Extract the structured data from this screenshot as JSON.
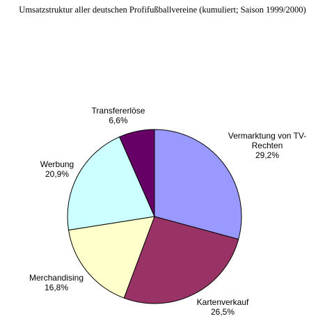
{
  "chart_data": {
    "type": "pie",
    "title": "Umsatzstruktur aller deutschen Profifußballvereine (kumuliert; Saison 1999/2000)",
    "slices": [
      {
        "label_lines": [
          "Vermarktung von TV-",
          "Rechten"
        ],
        "value_label": "29,2%",
        "value": 29.2,
        "color": "#9999ff"
      },
      {
        "label_lines": [
          "Kartenverkauf"
        ],
        "value_label": "26,5%",
        "value": 26.5,
        "color": "#993366"
      },
      {
        "label_lines": [
          "Merchandising"
        ],
        "value_label": "16,8%",
        "value": 16.8,
        "color": "#ffffcc"
      },
      {
        "label_lines": [
          "Werbung"
        ],
        "value_label": "20,9%",
        "value": 20.9,
        "color": "#ccffff"
      },
      {
        "label_lines": [
          "Transfererlöse"
        ],
        "value_label": "6,6%",
        "value": 6.6,
        "color": "#660066"
      }
    ],
    "start_angle": "12 o'clock",
    "direction": "clockwise",
    "legend": "none"
  }
}
